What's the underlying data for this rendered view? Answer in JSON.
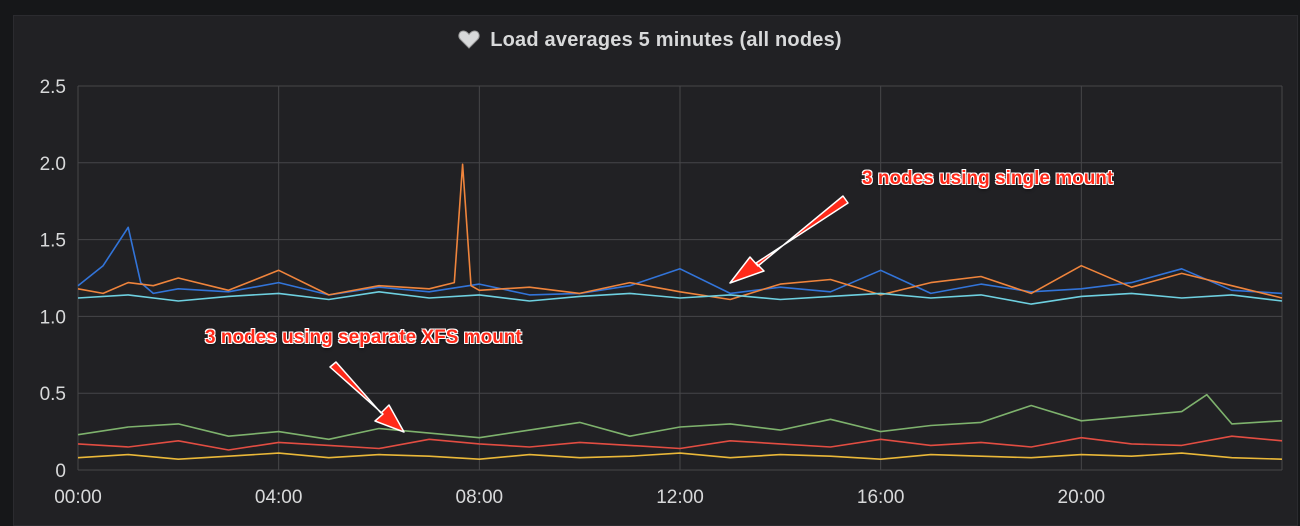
{
  "panel": {
    "title": "Load averages 5 minutes (all nodes)",
    "title_icon": "heart-icon"
  },
  "annotations": [
    {
      "text": "3 nodes using single mount"
    },
    {
      "text": "3 nodes using separate XFS mount"
    }
  ],
  "colors": {
    "background": "#212124",
    "grid": "#464649",
    "tick_text": "#d8d9da",
    "annotation": "#ff2a1a",
    "series": [
      "#3274d9",
      "#ef843c",
      "#6ed0e0",
      "#7eb26d",
      "#e24d42",
      "#eab839"
    ]
  },
  "chart_data": {
    "type": "line",
    "title": "Load averages 5 minutes (all nodes)",
    "xlabel": "",
    "ylabel": "",
    "x_ticks": [
      "00:00",
      "04:00",
      "08:00",
      "12:00",
      "16:00",
      "20:00"
    ],
    "y_ticks": [
      "0",
      "0.5",
      "1.0",
      "1.5",
      "2.0",
      "2.5"
    ],
    "xlim": [
      "00:00",
      "24:00"
    ],
    "ylim": [
      0,
      2.5
    ],
    "grid": true,
    "legend": "none",
    "series": [
      {
        "color": "#3274d9",
        "x": [
          "00:00",
          "00:30",
          "01:00",
          "01:15",
          "01:30",
          "02:00",
          "03:00",
          "04:00",
          "05:00",
          "06:00",
          "07:00",
          "08:00",
          "09:00",
          "10:00",
          "11:00",
          "12:00",
          "13:00",
          "14:00",
          "15:00",
          "16:00",
          "17:00",
          "18:00",
          "19:00",
          "20:00",
          "21:00",
          "22:00",
          "23:00",
          "24:00"
        ],
        "y": [
          1.2,
          1.33,
          1.58,
          1.22,
          1.15,
          1.18,
          1.16,
          1.22,
          1.14,
          1.19,
          1.16,
          1.21,
          1.14,
          1.15,
          1.2,
          1.31,
          1.15,
          1.19,
          1.16,
          1.3,
          1.15,
          1.21,
          1.16,
          1.18,
          1.22,
          1.31,
          1.17,
          1.15
        ]
      },
      {
        "color": "#ef843c",
        "x": [
          "00:00",
          "00:30",
          "01:00",
          "01:30",
          "02:00",
          "03:00",
          "04:00",
          "05:00",
          "06:00",
          "07:00",
          "07:30",
          "07:40",
          "07:50",
          "08:00",
          "09:00",
          "10:00",
          "11:00",
          "12:00",
          "13:00",
          "14:00",
          "15:00",
          "16:00",
          "17:00",
          "18:00",
          "19:00",
          "20:00",
          "21:00",
          "22:00",
          "23:00",
          "24:00"
        ],
        "y": [
          1.18,
          1.15,
          1.22,
          1.2,
          1.25,
          1.17,
          1.3,
          1.14,
          1.2,
          1.18,
          1.22,
          1.99,
          1.2,
          1.17,
          1.19,
          1.15,
          1.22,
          1.16,
          1.11,
          1.21,
          1.24,
          1.14,
          1.22,
          1.26,
          1.15,
          1.33,
          1.19,
          1.28,
          1.2,
          1.12
        ]
      },
      {
        "color": "#6ed0e0",
        "x": [
          "00:00",
          "01:00",
          "02:00",
          "03:00",
          "04:00",
          "05:00",
          "06:00",
          "07:00",
          "08:00",
          "09:00",
          "10:00",
          "11:00",
          "12:00",
          "13:00",
          "14:00",
          "15:00",
          "16:00",
          "17:00",
          "18:00",
          "19:00",
          "20:00",
          "21:00",
          "22:00",
          "23:00",
          "24:00"
        ],
        "y": [
          1.12,
          1.14,
          1.1,
          1.13,
          1.15,
          1.11,
          1.16,
          1.12,
          1.14,
          1.1,
          1.13,
          1.15,
          1.12,
          1.14,
          1.11,
          1.13,
          1.15,
          1.12,
          1.14,
          1.08,
          1.13,
          1.15,
          1.12,
          1.14,
          1.1
        ]
      },
      {
        "color": "#7eb26d",
        "x": [
          "00:00",
          "01:00",
          "02:00",
          "03:00",
          "04:00",
          "05:00",
          "06:00",
          "07:00",
          "08:00",
          "09:00",
          "10:00",
          "11:00",
          "12:00",
          "13:00",
          "14:00",
          "15:00",
          "16:00",
          "17:00",
          "18:00",
          "19:00",
          "20:00",
          "21:00",
          "22:00",
          "22:30",
          "23:00",
          "24:00"
        ],
        "y": [
          0.23,
          0.28,
          0.3,
          0.22,
          0.25,
          0.2,
          0.27,
          0.24,
          0.21,
          0.26,
          0.31,
          0.22,
          0.28,
          0.3,
          0.26,
          0.33,
          0.25,
          0.29,
          0.31,
          0.42,
          0.32,
          0.35,
          0.38,
          0.49,
          0.3,
          0.32
        ]
      },
      {
        "color": "#e24d42",
        "x": [
          "00:00",
          "01:00",
          "02:00",
          "03:00",
          "04:00",
          "05:00",
          "06:00",
          "07:00",
          "08:00",
          "09:00",
          "10:00",
          "11:00",
          "12:00",
          "13:00",
          "14:00",
          "15:00",
          "16:00",
          "17:00",
          "18:00",
          "19:00",
          "20:00",
          "21:00",
          "22:00",
          "23:00",
          "24:00"
        ],
        "y": [
          0.17,
          0.15,
          0.19,
          0.13,
          0.18,
          0.16,
          0.14,
          0.2,
          0.17,
          0.15,
          0.18,
          0.16,
          0.14,
          0.19,
          0.17,
          0.15,
          0.2,
          0.16,
          0.18,
          0.15,
          0.21,
          0.17,
          0.16,
          0.22,
          0.19
        ]
      },
      {
        "color": "#eab839",
        "x": [
          "00:00",
          "01:00",
          "02:00",
          "03:00",
          "04:00",
          "05:00",
          "06:00",
          "07:00",
          "08:00",
          "09:00",
          "10:00",
          "11:00",
          "12:00",
          "13:00",
          "14:00",
          "15:00",
          "16:00",
          "17:00",
          "18:00",
          "19:00",
          "20:00",
          "21:00",
          "22:00",
          "23:00",
          "24:00"
        ],
        "y": [
          0.08,
          0.1,
          0.07,
          0.09,
          0.11,
          0.08,
          0.1,
          0.09,
          0.07,
          0.1,
          0.08,
          0.09,
          0.11,
          0.08,
          0.1,
          0.09,
          0.07,
          0.1,
          0.09,
          0.08,
          0.1,
          0.09,
          0.11,
          0.08,
          0.07
        ]
      }
    ]
  }
}
